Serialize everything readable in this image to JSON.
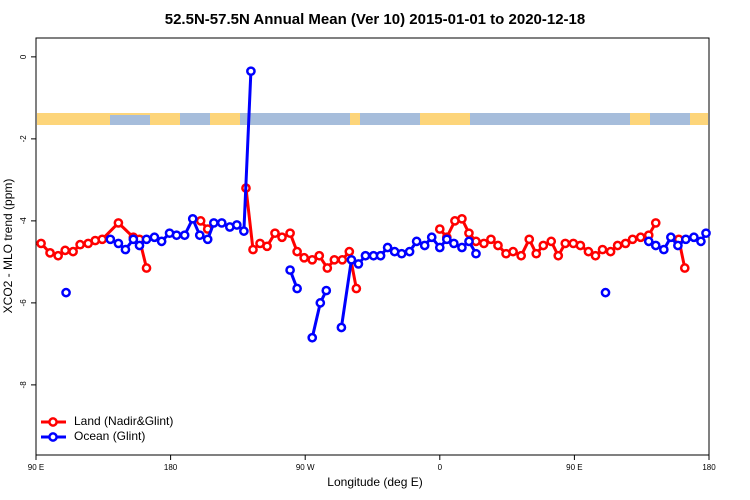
{
  "chart_data": {
    "type": "line",
    "title": "52.5N-57.5N Annual Mean (Ver 10)   2015-01-01 to 2020-12-18",
    "xlabel": "Longitude (deg E)",
    "ylabel": "XCO2 - MLO trend (ppm)",
    "xlim": [
      90,
      540
    ],
    "xticks": [
      {
        "value": 90,
        "label": "90 E"
      },
      180,
      {
        "value": 270,
        "label": "90 W"
      },
      {
        "value": 360,
        "label": "0"
      },
      {
        "value": 450,
        "label": "90 E"
      },
      {
        "value": 540,
        "label": "180"
      }
    ],
    "ylim": [
      -9.71,
      0.46
    ],
    "yticks": [
      0,
      -2,
      -4,
      -6,
      -8
    ],
    "legend": "bottom-left",
    "series": [
      {
        "name": "Land (Nadir&Glint)",
        "color": "#ff0000",
        "x": [
          93.4,
          99.4,
          104.8,
          109.5,
          114.8,
          119.5,
          124.9,
          129.6,
          134.3,
          145.1,
          155.1,
          159.2,
          163.9,
          null,
          200.1,
          204.8,
          null,
          230.4,
          235.1,
          239.8,
          244.5,
          249.8,
          254.5,
          259.9,
          264.6,
          269.3,
          274.7,
          279.4,
          284.8,
          289.5,
          294.8,
          299.5,
          304.2,
          null,
          360.0,
          364.7,
          370.1,
          374.8,
          379.5,
          384.2,
          389.5,
          394.2,
          398.9,
          404.3,
          409.0,
          414.4,
          419.8,
          424.5,
          429.2,
          434.5,
          439.2,
          443.9,
          449.3,
          454.0,
          459.4,
          464.1,
          468.8,
          474.2,
          478.9,
          484.2,
          488.9,
          494.3,
          499.7,
          504.4,
          null,
          519.8,
          523.8
        ],
        "values": [
          -4.55,
          -4.78,
          -4.85,
          -4.72,
          -4.75,
          -4.58,
          -4.55,
          -4.48,
          -4.45,
          -4.05,
          -4.4,
          -4.45,
          -5.15,
          null,
          -4.0,
          -4.2,
          null,
          -3.2,
          -4.7,
          -4.55,
          -4.62,
          -4.3,
          -4.4,
          -4.3,
          -4.75,
          -4.9,
          -4.95,
          -4.85,
          -5.15,
          -4.95,
          -4.95,
          -4.75,
          -5.65,
          null,
          -4.2,
          -4.4,
          -4.0,
          -3.95,
          -4.3,
          -4.5,
          -4.55,
          -4.45,
          -4.6,
          -4.8,
          -4.75,
          -4.85,
          -4.45,
          -4.8,
          -4.6,
          -4.5,
          -4.85,
          -4.55,
          -4.55,
          -4.6,
          -4.75,
          -4.85,
          -4.7,
          -4.75,
          -4.6,
          -4.55,
          -4.45,
          -4.4,
          -4.35,
          -4.05,
          null,
          -4.45,
          -5.15
        ]
      },
      {
        "name": "Ocean (Glint)",
        "color": "#0000ff",
        "x": [
          110.1,
          null,
          139.7,
          145.1,
          149.8,
          155.1,
          159.2,
          163.9,
          169.2,
          174.0,
          179.3,
          184.0,
          189.4,
          194.8,
          199.5,
          204.8,
          208.9,
          214.2,
          219.6,
          224.3,
          229.0,
          233.7,
          null,
          259.9,
          264.6,
          null,
          274.7,
          280.1,
          284.1,
          null,
          294.2,
          300.9,
          305.6,
          310.3,
          315.7,
          320.4,
          325.1,
          329.8,
          334.5,
          339.8,
          344.5,
          349.9,
          354.6,
          360.0,
          364.7,
          369.4,
          374.8,
          379.5,
          384.2,
          null,
          470.8,
          null,
          499.7,
          504.4,
          509.8,
          514.5,
          519.2,
          524.5,
          529.9,
          534.6,
          538.0
        ],
        "values": [
          -5.75,
          null,
          -4.45,
          -4.55,
          -4.7,
          -4.45,
          -4.6,
          -4.45,
          -4.4,
          -4.5,
          -4.3,
          -4.35,
          -4.35,
          -3.95,
          -4.35,
          -4.45,
          -4.05,
          -4.05,
          -4.15,
          -4.1,
          -4.25,
          -0.35,
          null,
          -5.2,
          -5.65,
          null,
          -6.85,
          -6.0,
          -5.7,
          null,
          -6.6,
          -4.95,
          -5.05,
          -4.85,
          -4.85,
          -4.85,
          -4.65,
          -4.75,
          -4.8,
          -4.75,
          -4.5,
          -4.6,
          -4.4,
          -4.65,
          -4.45,
          -4.55,
          -4.65,
          -4.5,
          -4.8,
          null,
          -5.75,
          null,
          -4.5,
          -4.6,
          -4.7,
          -4.4,
          -4.6,
          -4.45,
          -4.4,
          -4.5,
          -4.3
        ]
      }
    ]
  }
}
